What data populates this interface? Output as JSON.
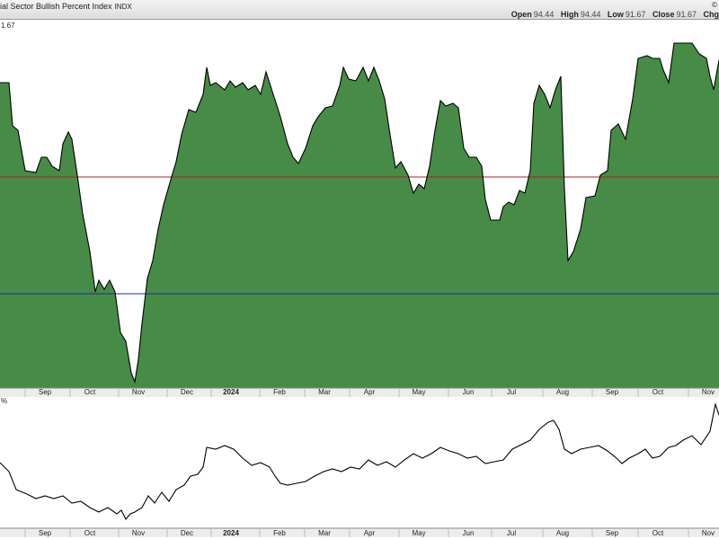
{
  "header": {
    "title": "ial Sector Bullish Percent Index",
    "symbol": "INDX",
    "copyright": "©",
    "ohlc": [
      {
        "label": "Open",
        "value": 94.44
      },
      {
        "label": "High",
        "value": 94.44
      },
      {
        "label": "Low",
        "value": 91.67
      },
      {
        "label": "Close",
        "value": 91.67
      }
    ],
    "change_label": "Chg"
  },
  "chart_data": [
    {
      "type": "area",
      "label": "1.67",
      "color": "#468c46",
      "line_color": "#000000",
      "xlim": [
        0,
        800
      ],
      "ylim": [
        30,
        112
      ],
      "xticks": [
        {
          "value": 50,
          "label": "Sep"
        },
        {
          "value": 100,
          "label": "Oct"
        },
        {
          "value": 154,
          "label": "Nov"
        },
        {
          "value": 208,
          "label": "Dec"
        },
        {
          "value": 257,
          "label": "2024"
        },
        {
          "value": 311,
          "label": "Feb"
        },
        {
          "value": 361,
          "label": "Mar"
        },
        {
          "value": 411,
          "label": "Apr"
        },
        {
          "value": 466,
          "label": "May"
        },
        {
          "value": 521,
          "label": "Jun"
        },
        {
          "value": 569,
          "label": "Jul"
        },
        {
          "value": 626,
          "label": "Aug"
        },
        {
          "value": 681,
          "label": "Sep"
        },
        {
          "value": 732,
          "label": "Oct"
        },
        {
          "value": 788,
          "label": "Nov"
        }
      ],
      "ref_lines": [
        {
          "value": 77,
          "color": "#b02020"
        },
        {
          "value": 51,
          "color": "#1c2ca0"
        }
      ],
      "x": [
        0,
        10,
        14,
        20,
        28,
        40,
        46,
        52,
        58,
        66,
        70,
        76,
        80,
        86,
        92,
        100,
        106,
        110,
        116,
        122,
        128,
        134,
        140,
        146,
        150,
        154,
        158,
        164,
        170,
        176,
        182,
        190,
        196,
        202,
        210,
        218,
        226,
        230,
        234,
        240,
        250,
        256,
        262,
        270,
        276,
        284,
        290,
        296,
        304,
        312,
        320,
        326,
        332,
        340,
        348,
        354,
        362,
        370,
        378,
        382,
        388,
        396,
        404,
        410,
        416,
        422,
        428,
        434,
        440,
        446,
        454,
        460,
        466,
        472,
        478,
        484,
        490,
        496,
        504,
        510,
        516,
        522,
        530,
        536,
        540,
        546,
        556,
        560,
        566,
        572,
        578,
        584,
        590,
        594,
        600,
        606,
        612,
        618,
        624,
        628,
        632,
        638,
        646,
        652,
        662,
        668,
        676,
        680,
        688,
        696,
        704,
        710,
        720,
        726,
        734,
        738,
        744,
        750,
        770,
        778,
        786,
        790,
        794,
        800
      ],
      "values": [
        98.0,
        98.0,
        88.4,
        87.4,
        78.4,
        78.0,
        81.4,
        81.4,
        79.4,
        78.4,
        84.4,
        87.0,
        85.4,
        77.4,
        68.8,
        60.4,
        51.4,
        54.0,
        52.0,
        54.0,
        51.4,
        42.4,
        40.4,
        33.4,
        31.4,
        36.4,
        44.4,
        54.4,
        58.4,
        65.4,
        70.8,
        76.4,
        80.4,
        86.4,
        92.0,
        91.4,
        95.4,
        101.4,
        97.4,
        98.0,
        96.4,
        98.4,
        97.0,
        98.0,
        96.4,
        97.4,
        95.4,
        100.4,
        95.4,
        90.4,
        84.4,
        81.4,
        80.0,
        83.4,
        88.4,
        90.4,
        92.4,
        92.8,
        97.4,
        101.4,
        98.8,
        98.4,
        101.4,
        98.4,
        101.4,
        98.4,
        94.4,
        86.4,
        79.0,
        80.4,
        77.4,
        73.4,
        75.4,
        74.4,
        79.4,
        87.4,
        94.0,
        92.8,
        93.4,
        92.4,
        83.4,
        81.4,
        81.4,
        79.4,
        72.0,
        67.4,
        67.4,
        70.4,
        71.4,
        70.8,
        74.0,
        73.4,
        78.4,
        93.4,
        97.4,
        95.4,
        92.4,
        96.4,
        99.4,
        74.4,
        58.4,
        60.4,
        65.4,
        72.4,
        72.8,
        77.4,
        78.4,
        87.4,
        88.8,
        85.4,
        94.4,
        103.4,
        104.0,
        103.4,
        103.4,
        100.8,
        98.0,
        106.8,
        106.8,
        104.4,
        103.4,
        99.4,
        96.4,
        103.0
      ]
    },
    {
      "type": "line",
      "label": "%",
      "line_color": "#000000",
      "xlim": [
        0,
        800
      ],
      "ylim": [
        0,
        146
      ],
      "xticks": [
        {
          "value": 50,
          "label": "Sep"
        },
        {
          "value": 100,
          "label": "Oct"
        },
        {
          "value": 154,
          "label": "Nov"
        },
        {
          "value": 208,
          "label": "Dec"
        },
        {
          "value": 257,
          "label": "2024"
        },
        {
          "value": 311,
          "label": "Feb"
        },
        {
          "value": 361,
          "label": "Mar"
        },
        {
          "value": 411,
          "label": "Apr"
        },
        {
          "value": 466,
          "label": "May"
        },
        {
          "value": 521,
          "label": "Jun"
        },
        {
          "value": 569,
          "label": "Jul"
        },
        {
          "value": 626,
          "label": "Aug"
        },
        {
          "value": 681,
          "label": "Sep"
        },
        {
          "value": 732,
          "label": "Oct"
        },
        {
          "value": 788,
          "label": "Nov"
        }
      ],
      "x": [
        0,
        10,
        18,
        30,
        40,
        50,
        60,
        70,
        80,
        90,
        100,
        110,
        120,
        130,
        135,
        140,
        145,
        150,
        158,
        165,
        172,
        180,
        188,
        196,
        205,
        212,
        220,
        226,
        230,
        240,
        250,
        260,
        270,
        280,
        290,
        300,
        306,
        312,
        320,
        330,
        340,
        350,
        360,
        370,
        380,
        390,
        400,
        410,
        420,
        430,
        440,
        450,
        460,
        470,
        480,
        490,
        500,
        510,
        520,
        530,
        540,
        550,
        560,
        570,
        580,
        590,
        600,
        610,
        616,
        622,
        628,
        636,
        646,
        656,
        666,
        676,
        686,
        692,
        700,
        710,
        718,
        726,
        734,
        744,
        752,
        760,
        770,
        780,
        790,
        796,
        800
      ],
      "values": [
        73,
        63,
        43,
        38,
        33,
        36,
        33,
        36,
        28,
        30,
        23,
        18,
        23,
        16,
        20,
        10,
        16,
        18,
        23,
        36,
        28,
        40,
        30,
        43,
        48,
        58,
        60,
        68,
        90,
        88,
        92,
        88,
        78,
        70,
        73,
        68,
        58,
        50,
        48,
        50,
        52,
        58,
        63,
        66,
        63,
        68,
        66,
        76,
        70,
        74,
        68,
        76,
        83,
        78,
        83,
        90,
        86,
        83,
        78,
        80,
        72,
        74,
        76,
        88,
        93,
        98,
        110,
        118,
        120,
        110,
        88,
        83,
        88,
        90,
        92,
        86,
        78,
        72,
        78,
        83,
        88,
        78,
        80,
        90,
        92,
        98,
        103,
        93,
        108,
        138,
        126
      ]
    }
  ]
}
